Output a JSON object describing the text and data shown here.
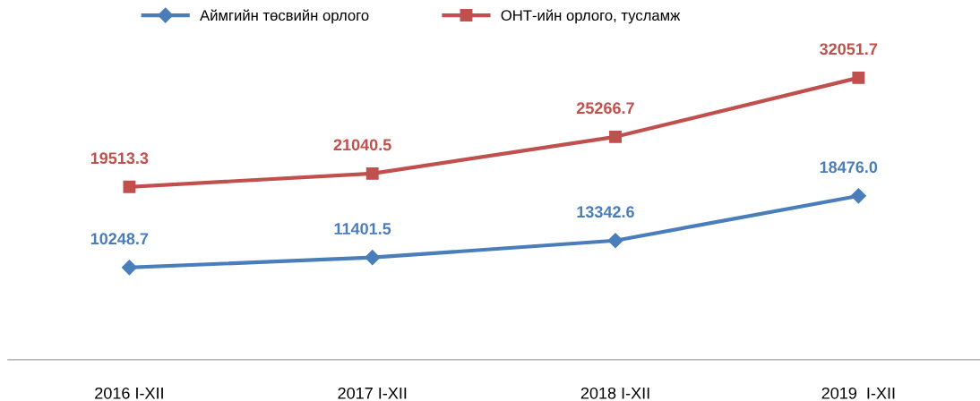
{
  "chart_data": {
    "type": "line",
    "categories": [
      "2016 I-XII",
      "2017 I-XII",
      "2018 I-XII",
      "2019  I-XII"
    ],
    "series": [
      {
        "name": "Аймгийн төсвийн орлого",
        "color": "#4a7ebb",
        "marker": "diamond",
        "values": [
          10248.7,
          11401.5,
          13342.6,
          18476.0
        ],
        "value_labels": [
          "10248.7",
          "11401.5",
          "13342.6",
          "18476.0"
        ]
      },
      {
        "name": "ОНТ-ийн орлого, тусламж",
        "color": "#c0504d",
        "marker": "square",
        "values": [
          19513.3,
          21040.5,
          25266.7,
          32051.7
        ],
        "value_labels": [
          "19513.3",
          "21040.5",
          "25266.7",
          "32051.7"
        ]
      }
    ],
    "legend": "top",
    "grid": false,
    "tick_labels": "x"
  }
}
